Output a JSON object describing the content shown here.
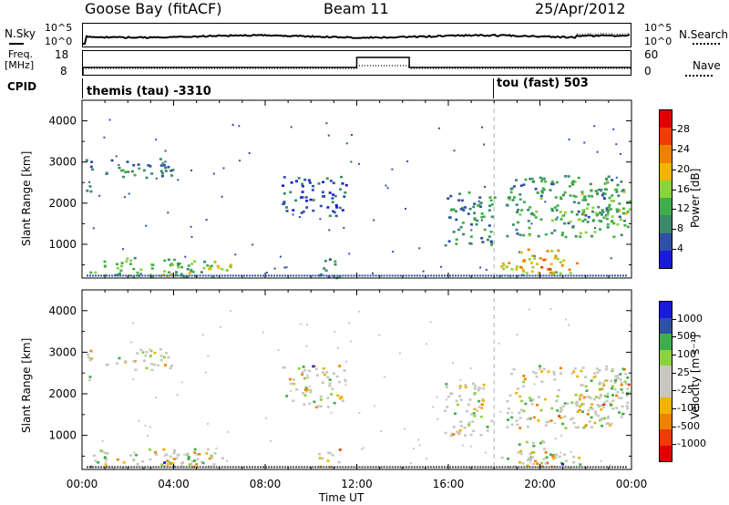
{
  "header": {
    "station": "Goose Bay (fitACF)",
    "beam": "Beam 11",
    "date": "25/Apr/2012"
  },
  "top_panels": {
    "noise_label_left": "N.Sky",
    "noise_label_right": "N.Search",
    "noise_tick_hi": "10^5",
    "noise_tick_lo": "10^0",
    "freq_label_1": "Freq.",
    "freq_label_2": "[MHz]",
    "freq_tick_hi": "18",
    "freq_tick_lo": "8",
    "nave_label": "Nave",
    "nave_tick_hi": "60",
    "nave_tick_lo": "0",
    "cpid_label": "CPID",
    "cpid_1": "themis (tau) -3310",
    "cpid_2": "tou (fast) 503"
  },
  "colors": {
    "power_scale": [
      "#1a1adc",
      "#2f4fa8",
      "#3a8a6a",
      "#3fae4a",
      "#8bd33c",
      "#f0b400",
      "#f08000",
      "#f03c00",
      "#e00000"
    ],
    "velocity_scale": [
      "#e00000",
      "#f03c00",
      "#f08000",
      "#f0b400",
      "#c8c8c0",
      "#c8c8c0",
      "#8bd33c",
      "#3fae4a",
      "#2f4fa8",
      "#1a1adc"
    ]
  },
  "chart_data": [
    {
      "type": "heatmap",
      "title": "Power",
      "ylabel": "Slant Range [km]",
      "colorbar_label": "Power [dB]",
      "colorbar_ticks": [
        "4",
        "8",
        "12",
        "16",
        "20",
        "24",
        "28"
      ],
      "x_ticks": [
        "00:00",
        "04:00",
        "08:00",
        "12:00",
        "16:00",
        "20:00",
        "00:00"
      ],
      "y_ticks": [
        "1000",
        "2000",
        "3000",
        "4000"
      ],
      "xlim": [
        0,
        24
      ],
      "ylim": [
        180,
        4500
      ],
      "echo_regions": [
        {
          "t0": 0.1,
          "t1": 0.4,
          "r0": 2100,
          "r1": 3200,
          "p": 8
        },
        {
          "t0": 1.0,
          "t1": 4.0,
          "r0": 2600,
          "r1": 3100,
          "p": 9
        },
        {
          "t0": 0.3,
          "t1": 5.8,
          "r0": 220,
          "r1": 700,
          "p": 14
        },
        {
          "t0": 3.5,
          "t1": 6.5,
          "r0": 250,
          "r1": 600,
          "p": 18
        },
        {
          "t0": 10.3,
          "t1": 11.3,
          "r0": 200,
          "r1": 700,
          "p": 12
        },
        {
          "t0": 8.7,
          "t1": 11.5,
          "r0": 1700,
          "r1": 2700,
          "p": 6
        },
        {
          "t0": 15.8,
          "t1": 18.0,
          "r0": 1000,
          "r1": 2300,
          "p": 10
        },
        {
          "t0": 18.2,
          "t1": 21.8,
          "r0": 250,
          "r1": 650,
          "p": 20
        },
        {
          "t0": 19.0,
          "t1": 20.8,
          "r0": 300,
          "r1": 900,
          "p": 24
        },
        {
          "t0": 18.5,
          "t1": 23.8,
          "r0": 1200,
          "r1": 2700,
          "p": 12
        },
        {
          "t0": 21.5,
          "t1": 23.9,
          "r0": 1500,
          "r1": 2400,
          "p": 16
        }
      ]
    },
    {
      "type": "heatmap",
      "title": "Velocity",
      "ylabel": "Slant Range [km]",
      "xlabel": "Time UT",
      "colorbar_label": "Velocity [m s⁻¹]",
      "colorbar_ticks": [
        "-1000",
        "-500",
        "-100",
        "-25",
        "25",
        "100",
        "500",
        "1000"
      ],
      "x_ticks": [
        "00:00",
        "04:00",
        "08:00",
        "12:00",
        "16:00",
        "20:00",
        "00:00"
      ],
      "y_ticks": [
        "1000",
        "2000",
        "3000",
        "4000"
      ],
      "xlim": [
        0,
        24
      ],
      "ylim": [
        180,
        4500
      ]
    }
  ]
}
